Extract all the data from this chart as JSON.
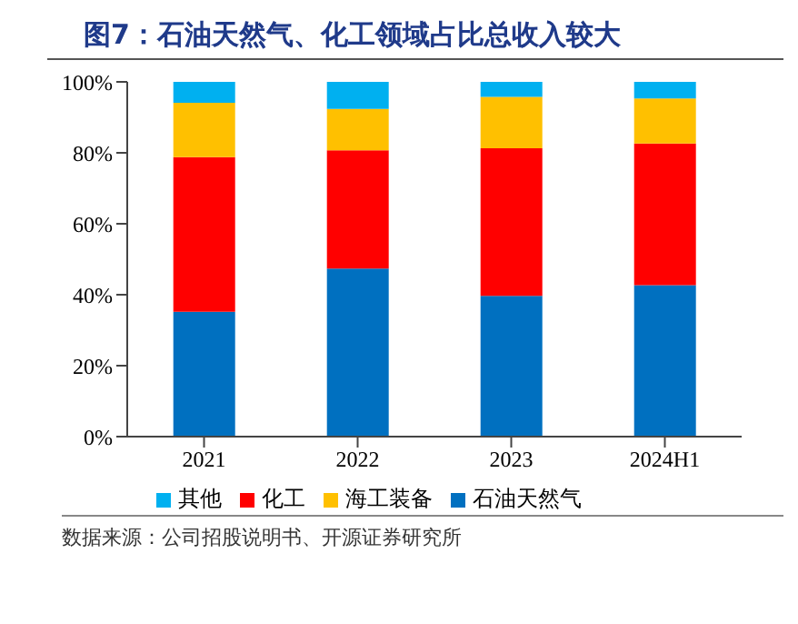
{
  "chart_data": {
    "type": "bar",
    "title": "图7：石油天然气、化工领域占比总收入较大",
    "annotations": [
      "数据来源：公司招股说明书、开源证券研究所"
    ],
    "categories": [
      "2021",
      "2022",
      "2023",
      "2024H1"
    ],
    "series": [
      {
        "name": "石油天然气",
        "color": "#0070c0",
        "values": [
          35.2,
          47.4,
          39.7,
          42.7
        ]
      },
      {
        "name": "化工",
        "color": "#ff0000",
        "values": [
          43.6,
          33.3,
          41.6,
          39.9
        ]
      },
      {
        "name": "海工装备",
        "color": "#ffc000",
        "values": [
          15.3,
          11.7,
          14.5,
          12.7
        ]
      },
      {
        "name": "其他",
        "color": "#00b0f0",
        "values": [
          5.9,
          7.6,
          4.2,
          4.7
        ]
      }
    ],
    "stacked": true,
    "ylim": [
      0,
      100
    ],
    "yticks": [
      {
        "value": 0,
        "label": "0%"
      },
      {
        "value": 20,
        "label": "20%"
      },
      {
        "value": 40,
        "label": "40%"
      },
      {
        "value": 60,
        "label": "60%"
      },
      {
        "value": 80,
        "label": "80%"
      },
      {
        "value": 100,
        "label": "100%"
      }
    ],
    "grid": false,
    "legend": "bottom"
  }
}
